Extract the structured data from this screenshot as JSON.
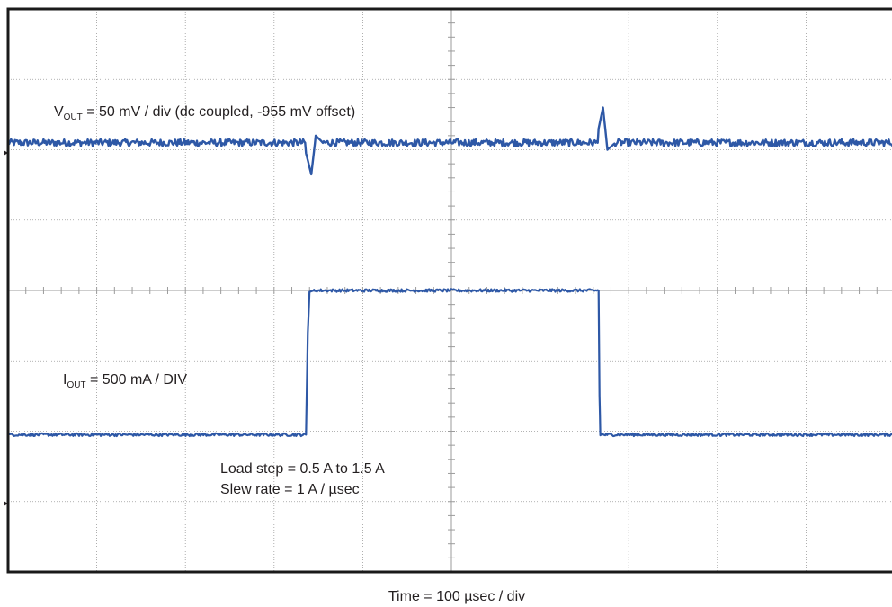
{
  "chart_data": {
    "type": "line",
    "title": "",
    "xlabel": "Time = 100 µsec / div",
    "ylabel": "",
    "grid": true,
    "divisions": {
      "x": 10,
      "y": 8
    },
    "xlim": [
      0,
      10
    ],
    "annotations": {
      "vout": {
        "symbol": "V",
        "subscript": "OUT",
        "text": " = 50 mV / div (dc coupled, -955 mV offset)"
      },
      "iout": {
        "symbol": "I",
        "subscript": "OUT",
        "text": " = 500 mA / DIV"
      },
      "load_step": "Load step = 0.5 A to 1.5 A",
      "slew_rate": "Slew rate = 1 A / µsec"
    },
    "series": [
      {
        "x": [
          0,
          3.35,
          3.36,
          3.42,
          3.47,
          3.55,
          3.7,
          6.65,
          6.66,
          6.71,
          6.76,
          6.85,
          10
        ],
        "y": [
          6.1,
          6.1,
          5.95,
          5.65,
          6.2,
          6.1,
          6.1,
          6.1,
          6.3,
          6.6,
          6.0,
          6.1,
          6.1
        ]
      },
      {
        "x": [
          0,
          3.36,
          3.38,
          3.4,
          3.45,
          6.66,
          6.67,
          6.68,
          10
        ],
        "y": [
          1.95,
          1.95,
          3.4,
          3.98,
          4.0,
          4.0,
          2.5,
          1.95,
          1.95
        ]
      }
    ],
    "colors": {
      "trace": "#2e58a6",
      "grid": "#9b9b9b",
      "frame": "#1a1a1a",
      "text": "#231f20"
    }
  }
}
